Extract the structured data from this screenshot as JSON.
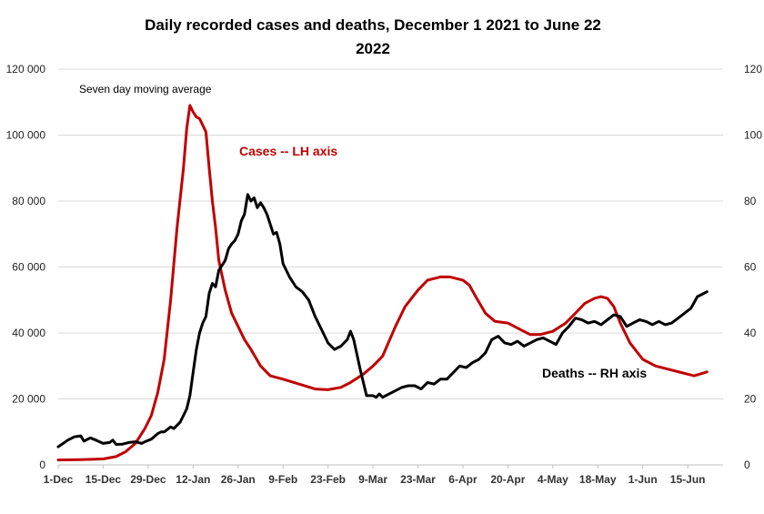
{
  "chart_data": {
    "type": "line",
    "title_line1": "Daily recorded cases and deaths,  December 1 2021 to June 22",
    "title_line2": "2022",
    "note": "Seven day moving average",
    "x_tick_labels": [
      "1-Dec",
      "15-Dec",
      "29-Dec",
      "12-Jan",
      "26-Jan",
      "9-Feb",
      "23-Feb",
      "9-Mar",
      "23-Mar",
      "6-Apr",
      "20-Apr",
      "4-May",
      "18-May",
      "1-Jun",
      "15-Jun"
    ],
    "x_tick_days": [
      0,
      14,
      28,
      42,
      56,
      70,
      84,
      98,
      112,
      126,
      140,
      154,
      168,
      182,
      196
    ],
    "x_range_days": [
      0,
      207
    ],
    "left_axis": {
      "ticks": [
        "0",
        "20 000",
        "40 000",
        "60 000",
        "80 000",
        "100 000",
        "120 000"
      ],
      "range": [
        0,
        120000
      ]
    },
    "right_axis": {
      "ticks": [
        "0",
        "20",
        "40",
        "60",
        "80",
        "100",
        "120"
      ],
      "range": [
        0,
        120
      ]
    },
    "grid": "horizontal",
    "series": [
      {
        "name": "Cases -- LH axis",
        "axis": "left",
        "color": "#c00000",
        "x": [
          0,
          7,
          14,
          18,
          21,
          24,
          27,
          29,
          31,
          33,
          35,
          37,
          39,
          40,
          41,
          42,
          43,
          44,
          46,
          47,
          48,
          49,
          50,
          52,
          54,
          56,
          58,
          60,
          63,
          66,
          70,
          75,
          80,
          84,
          88,
          91,
          95,
          98,
          101,
          105,
          108,
          112,
          115,
          117,
          119,
          122,
          124,
          126,
          128,
          130,
          133,
          136,
          140,
          144,
          147,
          150,
          154,
          158,
          161,
          164,
          167,
          169,
          171,
          173,
          175,
          178,
          182,
          186,
          190,
          194,
          198,
          202
        ],
        "values": [
          1500,
          1600,
          1800,
          2500,
          4000,
          6500,
          11000,
          15000,
          22000,
          32000,
          50000,
          72000,
          90000,
          102000,
          109000,
          107000,
          105500,
          105000,
          101000,
          90000,
          80000,
          72000,
          62000,
          53000,
          46000,
          42000,
          38000,
          35000,
          30000,
          27000,
          26000,
          24500,
          23000,
          22800,
          23500,
          25000,
          27500,
          30000,
          33000,
          42000,
          48000,
          53000,
          56000,
          56500,
          57000,
          57000,
          56500,
          56000,
          54500,
          51000,
          46000,
          43500,
          43000,
          41000,
          39500,
          39500,
          40500,
          43000,
          46000,
          49000,
          50500,
          51000,
          50500,
          48000,
          43000,
          37000,
          32000,
          30000,
          29000,
          28000,
          27000,
          28200
        ]
      },
      {
        "name": "Deaths -- RH axis",
        "axis": "right",
        "color": "#000000",
        "x": [
          0,
          3,
          5,
          7,
          8,
          10,
          12,
          14,
          16,
          17,
          18,
          20,
          22,
          24,
          26,
          27,
          29,
          31,
          32,
          33,
          35,
          36,
          38,
          40,
          41,
          42,
          43,
          44,
          45,
          46,
          47,
          48,
          49,
          50,
          51,
          52,
          53,
          54,
          55,
          56,
          57,
          58,
          59,
          60,
          61,
          62,
          63,
          64,
          65,
          66,
          67,
          68,
          69,
          70,
          72,
          74,
          76,
          78,
          80,
          82,
          84,
          86,
          88,
          90,
          91,
          92,
          94,
          96,
          98,
          99,
          100,
          101,
          103,
          105,
          107,
          109,
          111,
          113,
          115,
          117,
          119,
          121,
          123,
          125,
          127,
          129,
          131,
          133,
          135,
          137,
          139,
          141,
          143,
          145,
          147,
          149,
          151,
          153,
          155,
          157,
          159,
          161,
          163,
          165,
          167,
          169,
          171,
          173,
          175,
          177,
          179,
          181,
          183,
          185,
          187,
          189,
          191,
          193,
          195,
          197,
          199,
          201,
          202
        ],
        "values": [
          5.5,
          7.5,
          8.5,
          8.8,
          7.2,
          8.2,
          7.4,
          6.5,
          6.8,
          7.5,
          6.2,
          6.3,
          6.8,
          7.0,
          6.5,
          7.0,
          7.8,
          9.5,
          10.0,
          10.0,
          11.5,
          11.0,
          13.0,
          17.0,
          21.0,
          28.0,
          35.0,
          40.0,
          43.0,
          45.0,
          52.0,
          55.0,
          54.0,
          59.0,
          60.5,
          62.0,
          65.5,
          67.0,
          68.0,
          70.0,
          74.0,
          76.0,
          82.0,
          80.0,
          81.0,
          78.0,
          79.5,
          78.0,
          76.0,
          73.0,
          70.0,
          70.5,
          67.0,
          61.0,
          57.0,
          54.0,
          52.5,
          50.0,
          45.0,
          41.0,
          37.0,
          35.0,
          36.0,
          38.0,
          40.5,
          38.0,
          29.0,
          21.0,
          21.0,
          20.5,
          21.5,
          20.5,
          21.5,
          22.5,
          23.5,
          24.0,
          24.0,
          23.0,
          25.0,
          24.5,
          26.0,
          26.0,
          28.0,
          30.0,
          29.5,
          31.0,
          32.0,
          34.0,
          38.0,
          39.0,
          37.0,
          36.5,
          37.5,
          36.0,
          37.0,
          38.0,
          38.5,
          37.5,
          36.5,
          40.0,
          42.0,
          44.5,
          44.0,
          43.0,
          43.5,
          42.5,
          44.0,
          45.5,
          45.0,
          42.0,
          43.0,
          44.0,
          43.5,
          42.5,
          43.5,
          42.5,
          43.0,
          44.5,
          46.0,
          47.5,
          51.0,
          52.0,
          52.5
        ]
      }
    ]
  }
}
